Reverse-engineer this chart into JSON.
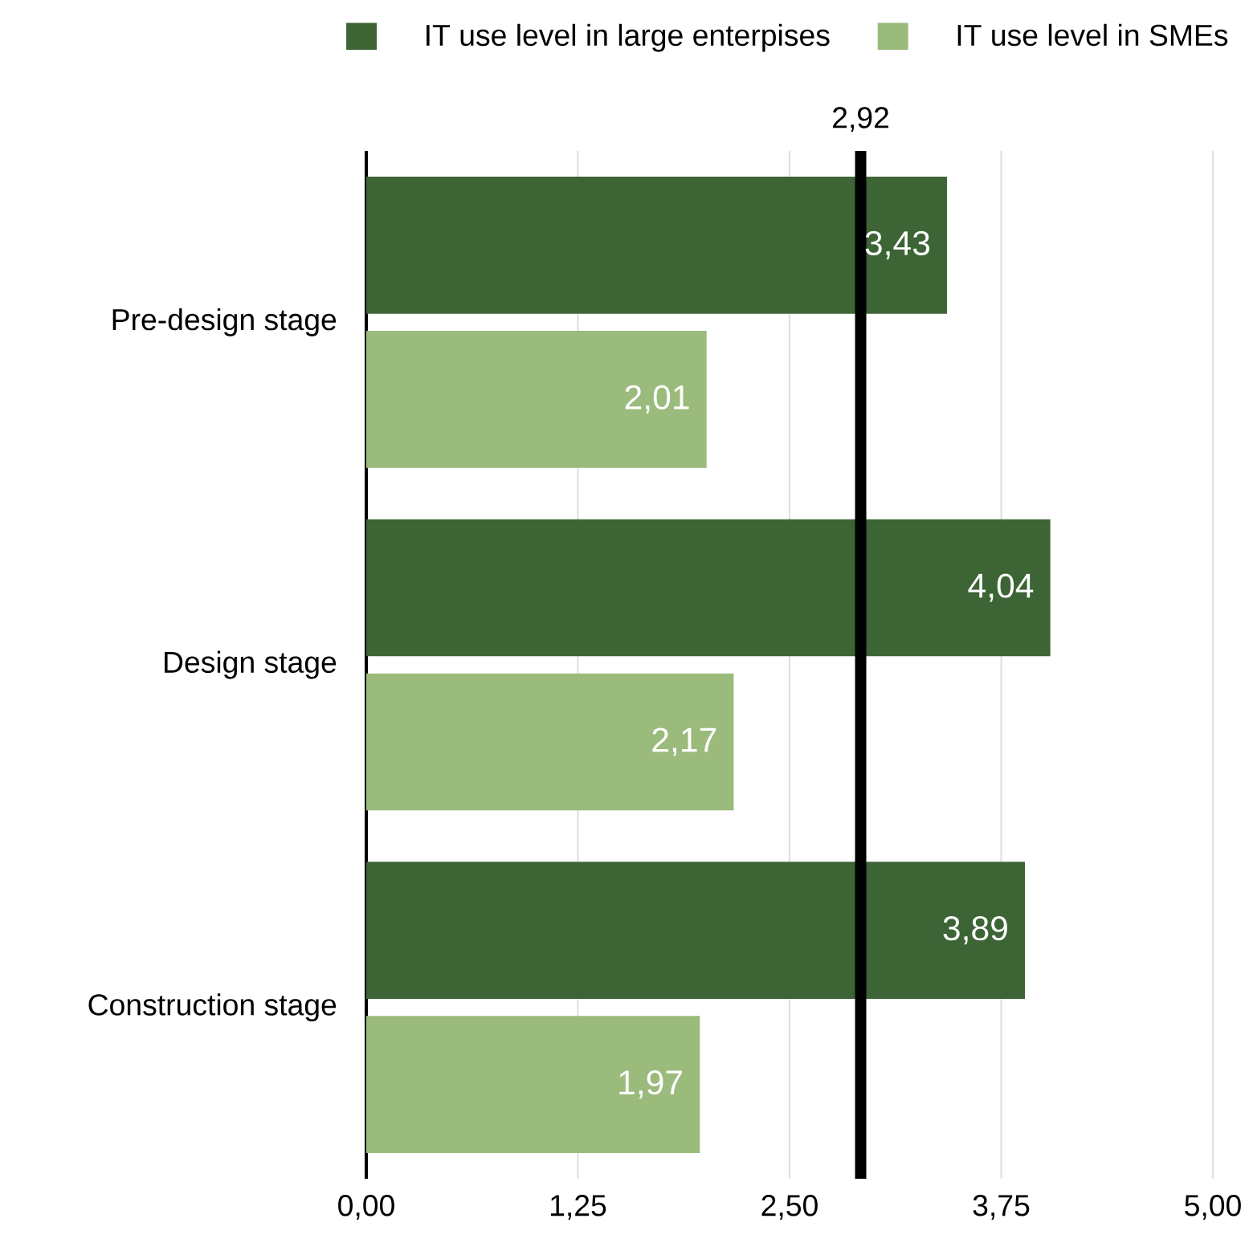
{
  "chart_data": {
    "type": "bar",
    "orientation": "horizontal",
    "categories": [
      "Pre-design stage",
      "Design stage",
      "Construction stage"
    ],
    "series": [
      {
        "name": "IT use level in large enterpises",
        "color": "#3d6434",
        "values": [
          3.43,
          4.04,
          3.89
        ],
        "value_labels": [
          "3,43",
          "4,04",
          "3,89"
        ]
      },
      {
        "name": "IT use level in SMEs",
        "color": "#9bbb7c",
        "values": [
          2.01,
          2.17,
          1.97
        ],
        "value_labels": [
          "2,01",
          "2,17",
          "1,97"
        ]
      }
    ],
    "xlim": [
      0,
      5
    ],
    "xticks": [
      {
        "value": 0,
        "label": "0,00"
      },
      {
        "value": 1.25,
        "label": "1,25"
      },
      {
        "value": 2.5,
        "label": "2,50"
      },
      {
        "value": 3.75,
        "label": "3,75"
      },
      {
        "value": 5,
        "label": "5,00"
      }
    ],
    "grid": "x",
    "legend": "top",
    "ref_lines": [
      {
        "axis": "x",
        "value": 2.92,
        "label": "2,92",
        "color": "#000000"
      }
    ]
  }
}
